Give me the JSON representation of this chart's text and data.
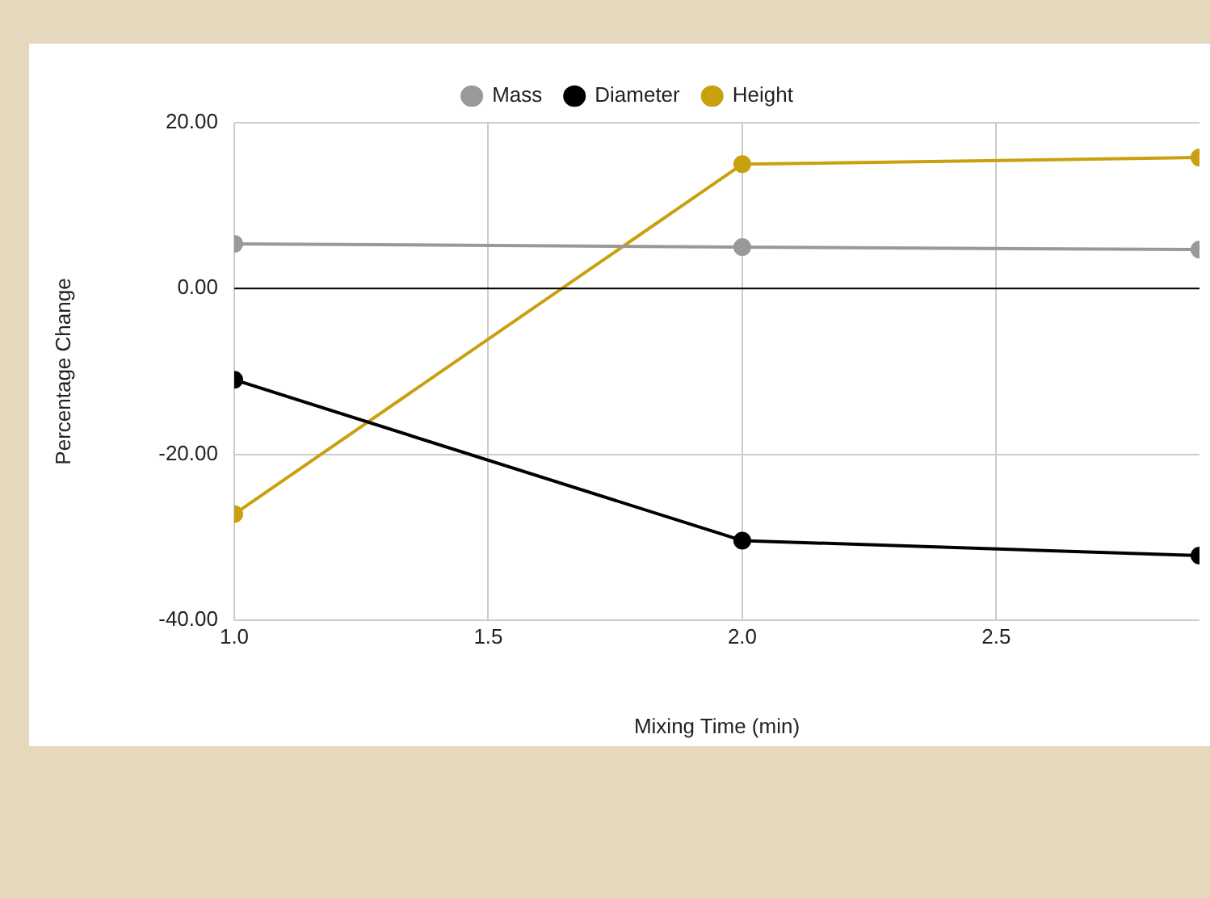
{
  "chart_data": {
    "type": "line",
    "xlabel": "Mixing Time (min)",
    "ylabel": "Percentage Change",
    "x": [
      1.0,
      2.0,
      2.9
    ],
    "series": [
      {
        "name": "Mass",
        "color": "#999999",
        "values": [
          5.4,
          5.0,
          4.7
        ]
      },
      {
        "name": "Diameter",
        "color": "#000000",
        "values": [
          -11.0,
          -30.4,
          -32.2
        ]
      },
      {
        "name": "Height",
        "color": "#c9a00d",
        "values": [
          -27.2,
          15.0,
          15.8
        ]
      }
    ],
    "xlim": [
      1.0,
      2.9
    ],
    "xticks": [
      {
        "value": 1,
        "label": "1.0"
      },
      {
        "value": 1.5,
        "label": "1.5"
      },
      {
        "value": 2,
        "label": "2.0"
      },
      {
        "value": 2.5,
        "label": "2.5"
      }
    ],
    "ylim": [
      -40,
      20
    ],
    "yticks": [
      {
        "value": -40,
        "label": "-40.00"
      },
      {
        "value": -20,
        "label": "-20.00"
      },
      {
        "value": 0,
        "label": "0.00"
      },
      {
        "value": 20,
        "label": "20.00"
      }
    ],
    "ref_lines": [
      {
        "axis": "y",
        "value": 0,
        "color": "#000000"
      }
    ],
    "grid": true,
    "legend": "top",
    "marker": "circle",
    "line_style": "solid"
  }
}
